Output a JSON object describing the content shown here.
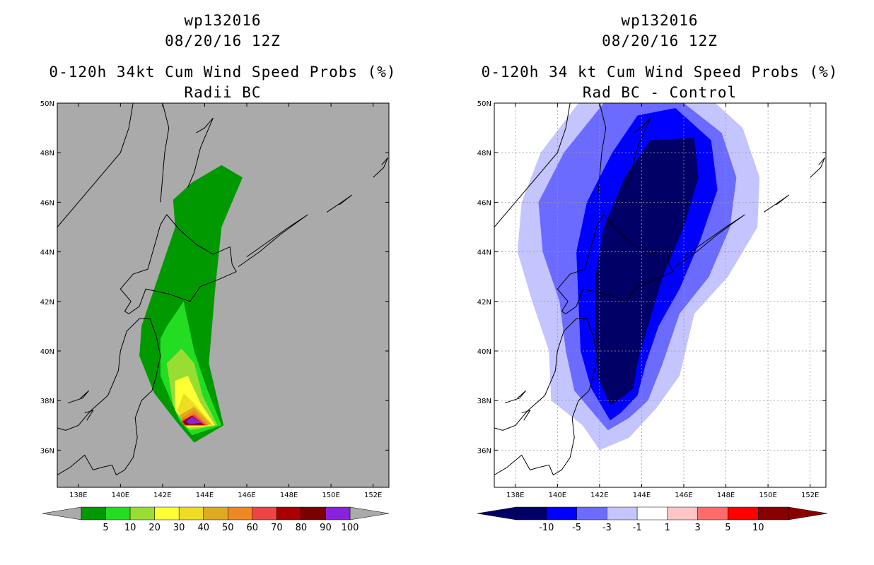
{
  "chart_data": [
    {
      "type": "heatmap",
      "title_lines": [
        "wp132016",
        "08/20/16 12Z",
        "0-120h 34kt Cum Wind Speed Probs (%)",
        "Radii BC"
      ],
      "xlabel": "",
      "ylabel": "",
      "x_ticks": [
        "138E",
        "140E",
        "142E",
        "144E",
        "146E",
        "148E",
        "150E",
        "152E"
      ],
      "x_tick_values": [
        138,
        140,
        142,
        144,
        146,
        148,
        150,
        152
      ],
      "y_ticks": [
        "36N",
        "38N",
        "40N",
        "42N",
        "44N",
        "46N",
        "48N",
        "50N"
      ],
      "y_tick_values": [
        36,
        38,
        40,
        42,
        44,
        46,
        48,
        50
      ],
      "xlim": [
        137,
        152.75
      ],
      "ylim": [
        34.5,
        50
      ],
      "grid": false,
      "background": "#aaaaaa",
      "colorbar": {
        "levels": [
          "5",
          "10",
          "20",
          "30",
          "40",
          "50",
          "60",
          "70",
          "80",
          "90",
          "100"
        ],
        "colors": [
          "#009900",
          "#22dd22",
          "#99dd33",
          "#ffff33",
          "#eedd22",
          "#ddaa22",
          "#ee8822",
          "#ee4444",
          "#aa0000",
          "#7a0000",
          "#8822dd"
        ],
        "under_color": "#aaaaaa",
        "over_color": "#aaaaaa"
      },
      "contours": [
        {
          "level": 5,
          "color": "#009900",
          "points": [
            [
              143.5,
              36.3
            ],
            [
              144.9,
              37.0
            ],
            [
              144.2,
              39.5
            ],
            [
              144.5,
              42.5
            ],
            [
              144.8,
              45.0
            ],
            [
              145.8,
              47.0
            ],
            [
              144.8,
              47.5
            ],
            [
              143.4,
              46.8
            ],
            [
              142.5,
              46.1
            ],
            [
              142.6,
              45.0
            ],
            [
              141.8,
              43.0
            ],
            [
              141.0,
              41.0
            ],
            [
              140.9,
              39.8
            ],
            [
              141.6,
              38.3
            ],
            [
              142.8,
              37.0
            ]
          ]
        },
        {
          "level": 10,
          "color": "#22dd22",
          "points": [
            [
              143.4,
              36.6
            ],
            [
              144.8,
              37.0
            ],
            [
              144.1,
              38.5
            ],
            [
              143.5,
              40.0
            ],
            [
              143.0,
              42.0
            ],
            [
              142.2,
              41.0
            ],
            [
              141.9,
              40.5
            ],
            [
              141.9,
              39.0
            ],
            [
              142.8,
              37.2
            ]
          ]
        },
        {
          "level": 20,
          "color": "#99dd33",
          "points": [
            [
              143.3,
              36.8
            ],
            [
              144.6,
              37.0
            ],
            [
              143.9,
              38.2
            ],
            [
              143.5,
              39.5
            ],
            [
              142.9,
              40.1
            ],
            [
              142.2,
              39.5
            ],
            [
              142.5,
              37.8
            ]
          ]
        },
        {
          "level": 30,
          "color": "#ffff33",
          "points": [
            [
              143.2,
              36.9
            ],
            [
              144.5,
              37.0
            ],
            [
              143.8,
              37.9
            ],
            [
              143.2,
              39.0
            ],
            [
              142.6,
              38.8
            ],
            [
              142.6,
              37.6
            ]
          ]
        },
        {
          "level": 40,
          "color": "#eedd22",
          "points": [
            [
              143.1,
              36.95
            ],
            [
              144.4,
              37.0
            ],
            [
              143.6,
              37.8
            ],
            [
              143.0,
              38.3
            ],
            [
              142.7,
              37.6
            ]
          ]
        },
        {
          "level": 50,
          "color": "#ddaa22",
          "points": [
            [
              143.1,
              37.0
            ],
            [
              144.3,
              37.05
            ],
            [
              143.5,
              37.75
            ],
            [
              142.8,
              37.4
            ]
          ]
        },
        {
          "level": 60,
          "color": "#ee8822",
          "points": [
            [
              143.0,
              37.0
            ],
            [
              144.2,
              37.0
            ],
            [
              143.5,
              37.6
            ],
            [
              142.9,
              37.3
            ]
          ]
        },
        {
          "level": 70,
          "color": "#ee4444",
          "points": [
            [
              143.0,
              37.0
            ],
            [
              144.1,
              37.0
            ],
            [
              143.5,
              37.45
            ],
            [
              142.9,
              37.2
            ]
          ]
        },
        {
          "level": 80,
          "color": "#aa0000",
          "points": [
            [
              143.1,
              37.0
            ],
            [
              144.0,
              37.0
            ],
            [
              143.4,
              37.4
            ],
            [
              142.95,
              37.15
            ]
          ]
        },
        {
          "level": 90,
          "color": "#7a0000",
          "points": [
            [
              143.1,
              37.05
            ],
            [
              143.9,
              37.05
            ],
            [
              143.35,
              37.35
            ],
            [
              143.0,
              37.15
            ]
          ]
        },
        {
          "level": 100,
          "color": "#8822dd",
          "points": [
            [
              143.3,
              37.05
            ],
            [
              143.85,
              37.1
            ],
            [
              143.4,
              37.35
            ],
            [
              143.1,
              37.15
            ]
          ]
        }
      ]
    },
    {
      "type": "heatmap",
      "title_lines": [
        "wp132016",
        "08/20/16 12Z",
        "0-120h 34 kt Cum Wind Speed Probs (%)",
        "Rad BC - Control"
      ],
      "xlabel": "",
      "ylabel": "",
      "x_ticks": [
        "138E",
        "140E",
        "142E",
        "144E",
        "146E",
        "148E",
        "150E",
        "152E"
      ],
      "x_tick_values": [
        138,
        140,
        142,
        144,
        146,
        148,
        150,
        152
      ],
      "y_ticks": [
        "36N",
        "38N",
        "40N",
        "42N",
        "44N",
        "46N",
        "48N",
        "50N"
      ],
      "y_tick_values": [
        36,
        38,
        40,
        42,
        44,
        46,
        48,
        50
      ],
      "xlim": [
        137,
        152.75
      ],
      "ylim": [
        34.5,
        50
      ],
      "grid": true,
      "background": "#ffffff",
      "colorbar": {
        "levels": [
          "-10",
          "-5",
          "-3",
          "-1",
          "1",
          "3",
          "5",
          "10"
        ],
        "colors": [
          "#000066",
          "#0000ff",
          "#6b6bff",
          "#c4c4ff",
          "#ffffff",
          "#ffc4c4",
          "#ff6b6b",
          "#ff0000",
          "#880000"
        ],
        "under_color": "#000066",
        "over_color": "#880000"
      },
      "contours": [
        {
          "level": -1,
          "color": "#c4c4ff",
          "points": [
            [
              142.0,
              36.0
            ],
            [
              141.2,
              37.0
            ],
            [
              139.7,
              38.0
            ],
            [
              139.6,
              40.0
            ],
            [
              138.8,
              42.0
            ],
            [
              138.1,
              44.0
            ],
            [
              138.3,
              46.0
            ],
            [
              139.2,
              48.0
            ],
            [
              141.0,
              50.0
            ],
            [
              147.5,
              50.0
            ],
            [
              148.8,
              49.0
            ],
            [
              149.6,
              47.0
            ],
            [
              149.5,
              45.0
            ],
            [
              148.1,
              43.0
            ],
            [
              146.5,
              41.5
            ],
            [
              145.8,
              39.0
            ],
            [
              144.7,
              37.7
            ],
            [
              143.4,
              36.5
            ]
          ]
        },
        {
          "level": -3,
          "color": "#6b6bff",
          "points": [
            [
              142.4,
              36.8
            ],
            [
              141.8,
              37.4
            ],
            [
              140.8,
              38.4
            ],
            [
              140.4,
              40.0
            ],
            [
              140.1,
              42.0
            ],
            [
              139.3,
              44.0
            ],
            [
              139.1,
              46.0
            ],
            [
              140.3,
              48.0
            ],
            [
              142.2,
              50.0
            ],
            [
              146.0,
              50.0
            ],
            [
              147.8,
              48.8
            ],
            [
              148.5,
              47.0
            ],
            [
              148.2,
              45.0
            ],
            [
              147.2,
              43.0
            ],
            [
              145.8,
              41.5
            ],
            [
              145.0,
              39.5
            ],
            [
              144.3,
              38.0
            ],
            [
              143.4,
              37.3
            ]
          ]
        },
        {
          "level": -5,
          "color": "#0000ff",
          "points": [
            [
              142.5,
              37.2
            ],
            [
              141.6,
              38.5
            ],
            [
              141.1,
              40.0
            ],
            [
              141.0,
              42.0
            ],
            [
              140.9,
              44.0
            ],
            [
              141.4,
              46.0
            ],
            [
              142.6,
              48.0
            ],
            [
              143.8,
              49.5
            ],
            [
              145.6,
              49.8
            ],
            [
              147.3,
              48.5
            ],
            [
              147.6,
              46.5
            ],
            [
              146.8,
              44.5
            ],
            [
              145.8,
              42.5
            ],
            [
              144.8,
              41.0
            ],
            [
              144.2,
              39.5
            ],
            [
              143.8,
              38.2
            ],
            [
              143.0,
              37.5
            ]
          ]
        },
        {
          "level": -10,
          "color": "#000066",
          "points": [
            [
              142.5,
              37.8
            ],
            [
              141.9,
              39.0
            ],
            [
              141.8,
              41.0
            ],
            [
              141.8,
              43.0
            ],
            [
              142.2,
              45.0
            ],
            [
              143.2,
              47.0
            ],
            [
              144.4,
              48.5
            ],
            [
              146.5,
              48.6
            ],
            [
              146.7,
              47.0
            ],
            [
              146.0,
              45.0
            ],
            [
              145.0,
              43.0
            ],
            [
              144.3,
              41.0
            ],
            [
              143.8,
              39.5
            ],
            [
              143.6,
              38.5
            ],
            [
              143.2,
              38.2
            ]
          ]
        }
      ]
    }
  ]
}
